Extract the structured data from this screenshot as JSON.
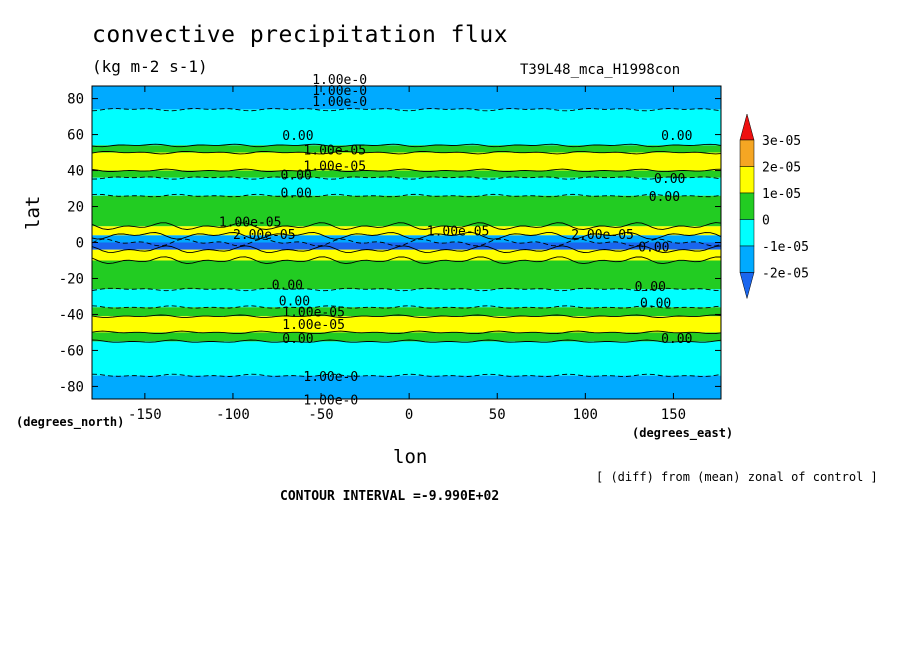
{
  "title": "convective precipitation flux",
  "units": "(kg m-2 s-1)",
  "run_name": "T39L48_mca_H1998con",
  "x_axis": {
    "label": "lon",
    "units_left": "(degrees_north)",
    "units_right": "(degrees_east)"
  },
  "y_axis": {
    "label": "lat"
  },
  "note": "[ (diff) from (mean) zonal of control ]",
  "contour_interval": "CONTOUR INTERVAL =-9.990E+02",
  "colors": {
    "red": "#ee1010",
    "orange": "#f5a623",
    "yellow": "#ffff00",
    "green": "#22cc22",
    "cyan": "#00ffff",
    "light_blue": "#00aaff",
    "blue": "#1a66ee"
  },
  "chart_data": {
    "type": "heatmap",
    "xlim": [
      -180,
      177
    ],
    "ylim": [
      -87,
      87
    ],
    "x_ticks": [
      -150,
      -100,
      -50,
      0,
      50,
      100,
      150
    ],
    "x_tick_labels": [
      "-150",
      "-100",
      "-50",
      "0",
      "50",
      "100",
      "150"
    ],
    "y_ticks": [
      -80,
      -60,
      -40,
      -20,
      0,
      20,
      40,
      60,
      80
    ],
    "y_tick_labels": [
      "-80",
      "-60",
      "-40",
      "-20",
      "0",
      "20",
      "40",
      "60",
      "80"
    ],
    "colorbar": {
      "labels": [
        "3e-05",
        "2e-05",
        "1e-05",
        "0",
        "-1e-05",
        "-2e-05"
      ],
      "bins": [
        {
          "color": "red",
          "range": [
            3e-05,
            null
          ]
        },
        {
          "color": "orange",
          "range": [
            2e-05,
            3e-05
          ]
        },
        {
          "color": "yellow",
          "range": [
            1e-05,
            2e-05
          ]
        },
        {
          "color": "green",
          "range": [
            0,
            1e-05
          ]
        },
        {
          "color": "cyan",
          "range": [
            -1e-05,
            0
          ]
        },
        {
          "color": "light_blue",
          "range": [
            -2e-05,
            -1e-05
          ]
        },
        {
          "color": "blue",
          "range": [
            null,
            -2e-05
          ]
        }
      ]
    },
    "zonal_bands": [
      {
        "lat_range": [
          74,
          87
        ],
        "color": "light_blue"
      },
      {
        "lat_range": [
          54,
          74
        ],
        "color": "cyan"
      },
      {
        "lat_range": [
          50,
          54
        ],
        "color": "green"
      },
      {
        "lat_range": [
          40,
          50
        ],
        "color": "yellow"
      },
      {
        "lat_range": [
          36,
          40
        ],
        "color": "green"
      },
      {
        "lat_range": [
          26,
          36
        ],
        "color": "cyan"
      },
      {
        "lat_range": [
          9,
          26
        ],
        "color": "green"
      },
      {
        "lat_range": [
          4,
          9
        ],
        "color": "yellow"
      },
      {
        "lat_range": [
          0,
          4
        ],
        "color": "light_blue"
      },
      {
        "lat_range": [
          -4,
          0
        ],
        "color": "blue"
      },
      {
        "lat_range": [
          -10,
          -4
        ],
        "color": "yellow"
      },
      {
        "lat_range": [
          -26,
          -10
        ],
        "color": "green"
      },
      {
        "lat_range": [
          -36,
          -26
        ],
        "color": "cyan"
      },
      {
        "lat_range": [
          -41,
          -36
        ],
        "color": "green"
      },
      {
        "lat_range": [
          -50,
          -41
        ],
        "color": "yellow"
      },
      {
        "lat_range": [
          -55,
          -50
        ],
        "color": "green"
      },
      {
        "lat_range": [
          -74,
          -55
        ],
        "color": "cyan"
      },
      {
        "lat_range": [
          -87,
          -74
        ],
        "color": "light_blue"
      }
    ],
    "contour_labels": [
      {
        "text": "1.00e-0",
        "lon": -55,
        "lat": 88
      },
      {
        "text": "1.00e-0",
        "lon": -55,
        "lat": 82
      },
      {
        "text": "1.00e-0",
        "lon": -55,
        "lat": 76
      },
      {
        "text": "0.00",
        "lon": -72,
        "lat": 57
      },
      {
        "text": "0.00",
        "lon": 143,
        "lat": 57
      },
      {
        "text": "1.00e-05",
        "lon": -60,
        "lat": 49
      },
      {
        "text": "1.00e-05",
        "lon": -60,
        "lat": 40
      },
      {
        "text": "0.00",
        "lon": -73,
        "lat": 35
      },
      {
        "text": "0.00",
        "lon": -73,
        "lat": 25
      },
      {
        "text": "0.00",
        "lon": 139,
        "lat": 33
      },
      {
        "text": "0.00",
        "lon": 136,
        "lat": 23
      },
      {
        "text": "1.00e-05",
        "lon": -108,
        "lat": 9
      },
      {
        "text": "2.00e-05",
        "lon": -100,
        "lat": 2
      },
      {
        "text": "1.00e-05",
        "lon": 10,
        "lat": 4
      },
      {
        "text": "2.00e-05",
        "lon": 92,
        "lat": 2
      },
      {
        "text": "0.00",
        "lon": 130,
        "lat": -5
      },
      {
        "text": "0.00",
        "lon": -78,
        "lat": -26
      },
      {
        "text": "0.00",
        "lon": -74,
        "lat": -35
      },
      {
        "text": "0.00",
        "lon": 128,
        "lat": -27
      },
      {
        "text": "0.00",
        "lon": 131,
        "lat": -36
      },
      {
        "text": "1.00e-05",
        "lon": -72,
        "lat": -41
      },
      {
        "text": "1.00e-05",
        "lon": -72,
        "lat": -48
      },
      {
        "text": "0.00",
        "lon": -72,
        "lat": -56
      },
      {
        "text": "0.00",
        "lon": 143,
        "lat": -56
      },
      {
        "text": "1.00e-0",
        "lon": -60,
        "lat": -77
      },
      {
        "text": "1.00e-0",
        "lon": -60,
        "lat": -90
      }
    ]
  }
}
